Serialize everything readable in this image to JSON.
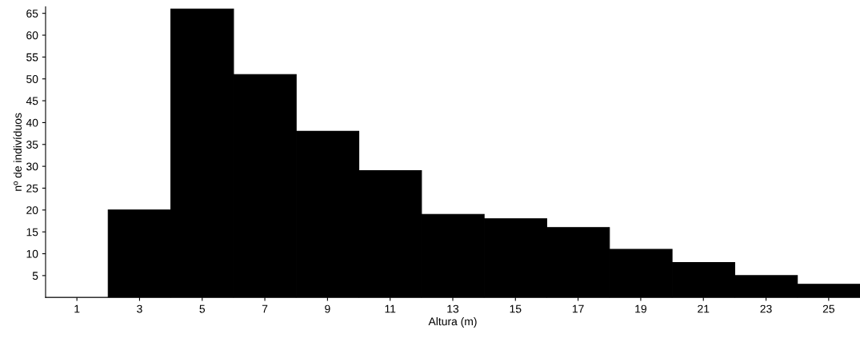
{
  "chart_data": {
    "type": "histogram",
    "xlabel": "Altura (m)",
    "ylabel": "nº de indivíduos",
    "bins": [
      0,
      2,
      4,
      6,
      8,
      10,
      12,
      14,
      16,
      18,
      20,
      22,
      24,
      26
    ],
    "values": [
      0,
      20,
      66,
      51,
      38,
      29,
      19,
      18,
      16,
      11,
      8,
      5,
      3
    ],
    "color": "#000000",
    "xlim": [
      0,
      26
    ],
    "xticks": [
      1,
      3,
      5,
      7,
      9,
      11,
      13,
      15,
      17,
      19,
      21,
      23,
      25
    ],
    "ylim": [
      0,
      66.5
    ],
    "yticks": [
      5,
      10,
      15,
      20,
      25,
      30,
      35,
      40,
      45,
      50,
      55,
      60,
      65
    ],
    "grid": false
  }
}
